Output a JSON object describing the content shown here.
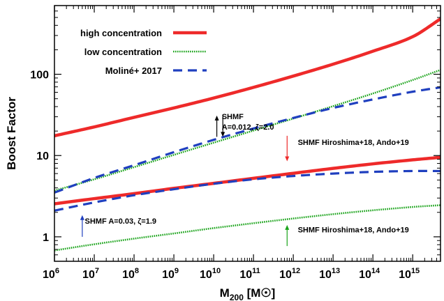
{
  "chart_data": {
    "type": "line",
    "xlabel": "M200 [M☉]",
    "xlabel_parts": {
      "main": "M",
      "sub": "200",
      "unit": " [M☉]"
    },
    "ylabel": "Boost Factor",
    "xscale": "log",
    "yscale": "log",
    "xlim": [
      1000000.0,
      5000000000000000.0
    ],
    "ylim": [
      0.5,
      700
    ],
    "x_ticks": [
      {
        "value": 1000000.0,
        "base": "10",
        "exp": "6"
      },
      {
        "value": 10000000.0,
        "base": "10",
        "exp": "7"
      },
      {
        "value": 100000000.0,
        "base": "10",
        "exp": "8"
      },
      {
        "value": 1000000000.0,
        "base": "10",
        "exp": "9"
      },
      {
        "value": 10000000000.0,
        "base": "10",
        "exp": "10"
      },
      {
        "value": 100000000000.0,
        "base": "10",
        "exp": "11"
      },
      {
        "value": 1000000000000.0,
        "base": "10",
        "exp": "12"
      },
      {
        "value": 10000000000000.0,
        "base": "10",
        "exp": "13"
      },
      {
        "value": 100000000000000.0,
        "base": "10",
        "exp": "14"
      },
      {
        "value": 1000000000000000.0,
        "base": "10",
        "exp": "15"
      }
    ],
    "y_ticks": [
      {
        "value": 1,
        "label": "1"
      },
      {
        "value": 10,
        "label": "10"
      },
      {
        "value": 100,
        "label": "100"
      }
    ],
    "legend": {
      "position": "top-left",
      "entries": [
        {
          "label": "high concentration",
          "color": "#ee2a2a",
          "style": "solid"
        },
        {
          "label": "low concentration",
          "color": "#1aa31a",
          "style": "dotted"
        },
        {
          "label": "Moliné+ 2017",
          "color": "#1f3fbf",
          "style": "dashed"
        }
      ]
    },
    "series": [
      {
        "legend_ref": 0,
        "color": "#ee2a2a",
        "style": "solid",
        "x": [
          1000000.0,
          10000000.0,
          100000000.0,
          1000000000.0,
          10000000000.0,
          100000000000.0,
          1000000000000.0,
          10000000000000.0,
          100000000000000.0,
          1000000000000000.0,
          5000000000000000.0
        ],
        "y": [
          17.5,
          22.5,
          29.5,
          38.5,
          51,
          69,
          95,
          133,
          192,
          290,
          480
        ]
      },
      {
        "legend_ref": 1,
        "color": "#1aa31a",
        "style": "dotted",
        "x": [
          1000000.0,
          10000000.0,
          100000000.0,
          1000000000.0,
          10000000000.0,
          100000000000.0,
          1000000000000.0,
          10000000000000.0,
          100000000000000.0,
          1000000000000000.0,
          5000000000000000.0
        ],
        "y": [
          3.7,
          5.1,
          7.2,
          10.2,
          14.4,
          20.3,
          28.5,
          40.5,
          58,
          85,
          113
        ]
      },
      {
        "legend_ref": 2,
        "color": "#1f3fbf",
        "style": "dashed",
        "x": [
          1000000.0,
          10000000.0,
          100000000.0,
          1000000000.0,
          10000000000.0,
          100000000000.0,
          1000000000000.0,
          10000000000000.0,
          100000000000000.0,
          1000000000000000.0,
          5000000000000000.0
        ],
        "y": [
          3.5,
          5.3,
          7.6,
          11.0,
          15.6,
          21.5,
          29,
          38.5,
          49,
          61,
          69
        ]
      },
      {
        "legend_ref": 0,
        "color": "#ee2a2a",
        "style": "solid",
        "x": [
          1000000.0,
          10000000.0,
          100000000.0,
          1000000000.0,
          10000000000.0,
          100000000000.0,
          1000000000000.0,
          10000000000000.0,
          100000000000000.0,
          1000000000000000.0,
          5000000000000000.0
        ],
        "y": [
          2.55,
          2.95,
          3.4,
          3.95,
          4.55,
          5.25,
          6.05,
          6.95,
          7.9,
          8.85,
          9.5
        ]
      },
      {
        "legend_ref": 1,
        "color": "#1aa31a",
        "style": "dotted",
        "x": [
          1000000.0,
          10000000.0,
          100000000.0,
          1000000000.0,
          10000000000.0,
          100000000000.0,
          1000000000000.0,
          10000000000000.0,
          100000000000000.0,
          1000000000000000.0,
          5000000000000000.0
        ],
        "y": [
          0.68,
          0.81,
          0.95,
          1.1,
          1.28,
          1.47,
          1.68,
          1.9,
          2.12,
          2.33,
          2.45
        ]
      },
      {
        "legend_ref": 2,
        "color": "#1f3fbf",
        "style": "dashed",
        "x": [
          1000000.0,
          10000000.0,
          100000000.0,
          1000000000.0,
          10000000000.0,
          100000000000.0,
          1000000000000.0,
          10000000000000.0,
          100000000000000.0,
          1000000000000000.0,
          5000000000000000.0
        ],
        "y": [
          2.1,
          2.65,
          3.25,
          3.85,
          4.5,
          5.1,
          5.6,
          6.0,
          6.3,
          6.45,
          6.45
        ]
      }
    ],
    "annotations": [
      {
        "lines": [
          "SHMF",
          "A=0.012, ζ=2.0"
        ],
        "x": 16000000000.0,
        "y": 28
      },
      {
        "lines": [
          "SHMF Hiroshima+18, Ando+19"
        ],
        "x": 1300000000000.0,
        "y": 13.5
      },
      {
        "lines": [
          "SHMF A=0.03, ζ=1.9"
        ],
        "x": 5800000.0,
        "y": 1.45
      },
      {
        "lines": [
          "SHMF Hiroshima+18, Ando+19"
        ],
        "x": 1300000000000.0,
        "y": 1.13
      }
    ],
    "arrows": [
      {
        "x": 12000000000.0,
        "y_from": 17,
        "y_to": 31,
        "color": "#000000"
      },
      {
        "x": 17000000000.0,
        "y_from": 31,
        "y_to": 17,
        "color": "#000000"
      },
      {
        "x": 700000000000.0,
        "y_from": 17.5,
        "y_to": 8.5,
        "color": "#ee2a2a"
      },
      {
        "x": 5000000.0,
        "y_from": 1,
        "y_to": 1.85,
        "color": "#1f3fbf"
      },
      {
        "x": 700000000000.0,
        "y_from": 0.77,
        "y_to": 1.4,
        "color": "#1aa31a"
      }
    ]
  }
}
